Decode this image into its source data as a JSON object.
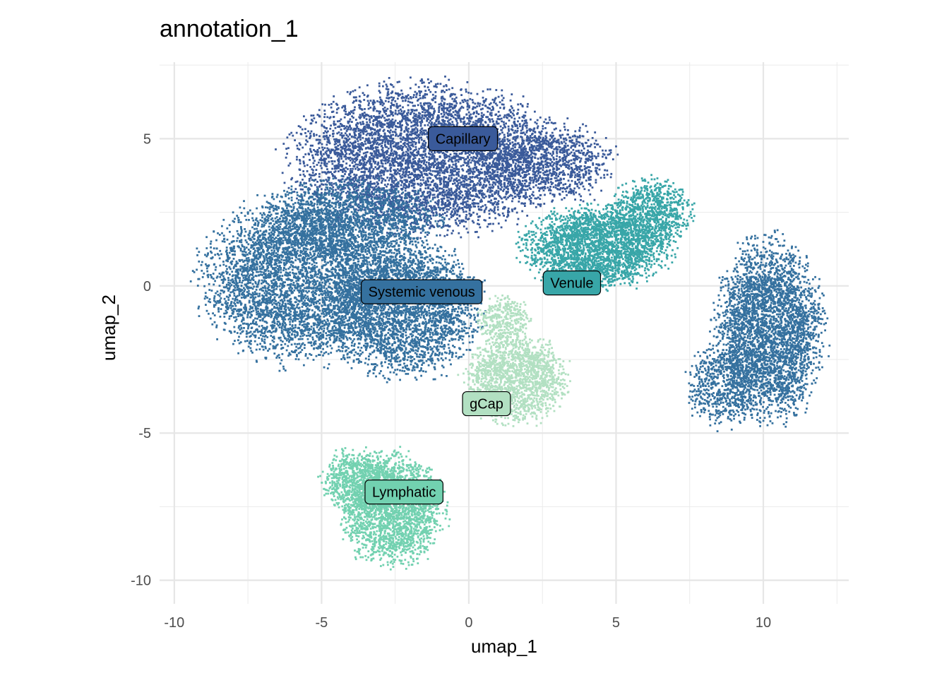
{
  "chart_data": {
    "type": "scatter",
    "title": "annotation_1",
    "xlabel": "umap_1",
    "ylabel": "umap_2",
    "xlim": [
      -10.5,
      12.9
    ],
    "ylim": [
      -10.8,
      7.6
    ],
    "x_ticks": [
      -10,
      -5,
      0,
      5,
      10
    ],
    "x_tick_labels": [
      "-10",
      "-5",
      "0",
      "5",
      "10"
    ],
    "y_ticks": [
      -10,
      -5,
      0,
      5
    ],
    "y_tick_labels": [
      "-10",
      "-5",
      "0",
      "5"
    ],
    "grid": true,
    "legend": "none",
    "clusters": [
      {
        "name": "Capillary",
        "color": "#3a5a9a",
        "label_x": -0.2,
        "label_y": 5.0
      },
      {
        "name": "Systemic venous",
        "color": "#35719f",
        "label_x": -1.6,
        "label_y": -0.2
      },
      {
        "name": "Venule",
        "color": "#38a6a8",
        "label_x": 3.5,
        "label_y": 0.1
      },
      {
        "name": "gCap",
        "color": "#b2e0c2",
        "label_x": 0.6,
        "label_y": -4.0
      },
      {
        "name": "Lymphatic",
        "color": "#72d1b0",
        "label_x": -2.2,
        "label_y": -7.0
      }
    ]
  }
}
